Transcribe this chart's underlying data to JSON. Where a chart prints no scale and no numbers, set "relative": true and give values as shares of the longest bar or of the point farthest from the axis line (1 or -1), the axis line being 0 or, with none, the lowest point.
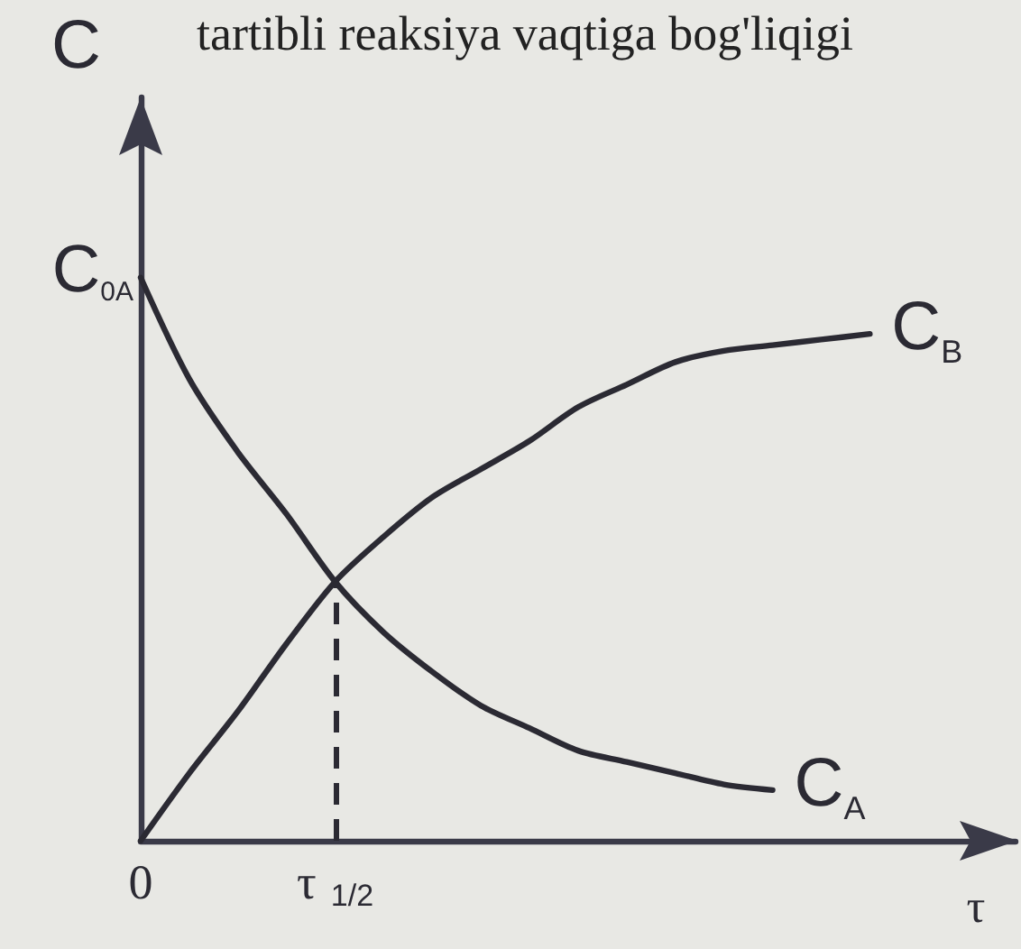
{
  "chart_data": {
    "type": "line",
    "title": "tartibli reaksiya vaqtiga bog'liqigi",
    "xlabel": "τ",
    "ylabel": "C",
    "relative": true,
    "grid": false,
    "legend": false,
    "categories": [
      "0",
      null,
      null,
      null,
      "τ$_{1/2}$",
      null,
      null,
      null,
      null,
      null,
      null,
      null,
      null,
      null,
      null,
      null,
      null,
      null,
      null
    ],
    "series": [
      {
        "name": "C$_{A}$",
        "color": "#2b2a33",
        "values": [
          1.0,
          0.82,
          0.69,
          0.58,
          0.46,
          0.37,
          0.3,
          0.24,
          0.2,
          0.16,
          0.14,
          0.12,
          0.1,
          0.09,
          null,
          null,
          null,
          null,
          null
        ]
      },
      {
        "name": "C$_{B}$",
        "color": "#2b2a33",
        "values": [
          0,
          0.12,
          0.23,
          0.35,
          0.46,
          0.54,
          0.61,
          0.66,
          0.71,
          0.77,
          0.81,
          0.85,
          0.87,
          0.88,
          0.89,
          0.9,
          null,
          null,
          null
        ]
      }
    ],
    "ref_lines": [
      {
        "axis": "x",
        "value": "τ$_{1/2}$",
        "line_style": "dashed",
        "color": "#2b2a33"
      }
    ],
    "annotations": [
      {
        "text": "C$_{0A}$",
        "x": "0",
        "y": 1
      }
    ]
  }
}
